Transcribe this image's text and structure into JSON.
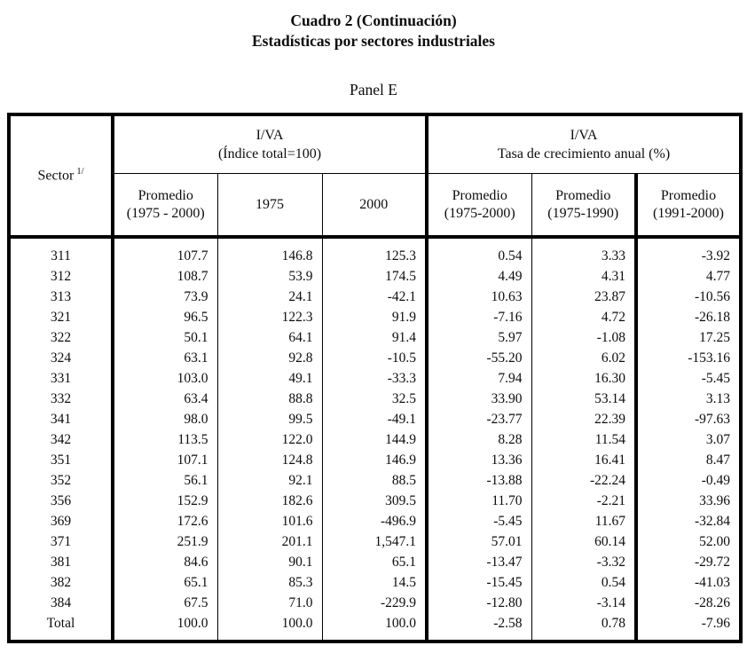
{
  "page": {
    "title_line1": "Cuadro 2 (Continuación)",
    "title_line2": "Estadísticas por sectores industriales",
    "panel_label": "Panel E"
  },
  "table": {
    "sector_label": "Sector",
    "sector_footnote_mark": "1/",
    "groups": [
      {
        "text": "I/VA\n(Índice total=100)"
      },
      {
        "text": "I/VA\nTasa de crecimiento anual (%)"
      }
    ],
    "subheaders": [
      "Promedio\n(1975 - 2000)",
      "1975",
      "2000",
      "Promedio\n(1975-2000)",
      "Promedio\n(1975-1990)",
      "Promedio\n(1991-2000)"
    ],
    "rows": [
      {
        "sector": "311",
        "values": [
          "107.7",
          "146.8",
          "125.3",
          "0.54",
          "3.33",
          "-3.92"
        ]
      },
      {
        "sector": "312",
        "values": [
          "108.7",
          "53.9",
          "174.5",
          "4.49",
          "4.31",
          "4.77"
        ]
      },
      {
        "sector": "313",
        "values": [
          "73.9",
          "24.1",
          "-42.1",
          "10.63",
          "23.87",
          "-10.56"
        ]
      },
      {
        "sector": "321",
        "values": [
          "96.5",
          "122.3",
          "91.9",
          "-7.16",
          "4.72",
          "-26.18"
        ]
      },
      {
        "sector": "322",
        "values": [
          "50.1",
          "64.1",
          "91.4",
          "5.97",
          "-1.08",
          "17.25"
        ]
      },
      {
        "sector": "324",
        "values": [
          "63.1",
          "92.8",
          "-10.5",
          "-55.20",
          "6.02",
          "-153.16"
        ]
      },
      {
        "sector": "331",
        "values": [
          "103.0",
          "49.1",
          "-33.3",
          "7.94",
          "16.30",
          "-5.45"
        ]
      },
      {
        "sector": "332",
        "values": [
          "63.4",
          "88.8",
          "32.5",
          "33.90",
          "53.14",
          "3.13"
        ]
      },
      {
        "sector": "341",
        "values": [
          "98.0",
          "99.5",
          "-49.1",
          "-23.77",
          "22.39",
          "-97.63"
        ]
      },
      {
        "sector": "342",
        "values": [
          "113.5",
          "122.0",
          "144.9",
          "8.28",
          "11.54",
          "3.07"
        ]
      },
      {
        "sector": "351",
        "values": [
          "107.1",
          "124.8",
          "146.9",
          "13.36",
          "16.41",
          "8.47"
        ]
      },
      {
        "sector": "352",
        "values": [
          "56.1",
          "92.1",
          "88.5",
          "-13.88",
          "-22.24",
          "-0.49"
        ]
      },
      {
        "sector": "356",
        "values": [
          "152.9",
          "182.6",
          "309.5",
          "11.70",
          "-2.21",
          "33.96"
        ]
      },
      {
        "sector": "369",
        "values": [
          "172.6",
          "101.6",
          "-496.9",
          "-5.45",
          "11.67",
          "-32.84"
        ]
      },
      {
        "sector": "371",
        "values": [
          "251.9",
          "201.1",
          "1,547.1",
          "57.01",
          "60.14",
          "52.00"
        ]
      },
      {
        "sector": "381",
        "values": [
          "84.6",
          "90.1",
          "65.1",
          "-13.47",
          "-3.32",
          "-29.72"
        ]
      },
      {
        "sector": "382",
        "values": [
          "65.1",
          "85.3",
          "14.5",
          "-15.45",
          "0.54",
          "-41.03"
        ]
      },
      {
        "sector": "384",
        "values": [
          "67.5",
          "71.0",
          "-229.9",
          "-12.80",
          "-3.14",
          "-28.26"
        ]
      },
      {
        "sector": "Total",
        "values": [
          "100.0",
          "100.0",
          "100.0",
          "-2.58",
          "0.78",
          "-7.96"
        ]
      }
    ]
  }
}
